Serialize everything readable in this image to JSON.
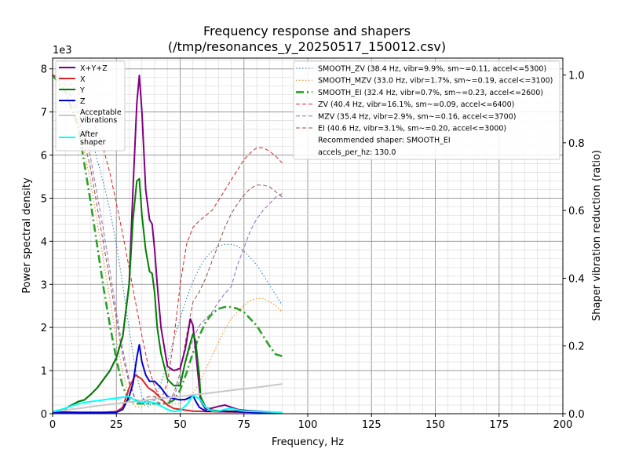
{
  "chart_data": {
    "type": "line",
    "title": "Frequency response and shapers",
    "subtitle": "(/tmp/resonances_y_20250517_150012.csv)",
    "xlabel": "Frequency, Hz",
    "ylabel": "Power spectral density",
    "ylabel_right": "Shaper vibration reduction (ratio)",
    "y_multiplier": "1e3",
    "xlim": [
      0,
      200
    ],
    "ylim": [
      0,
      8250
    ],
    "ylim_right": [
      0,
      1.05
    ],
    "x_ticks": [
      0,
      25,
      50,
      75,
      100,
      125,
      150,
      175,
      200
    ],
    "y_ticks": [
      0,
      1000,
      2000,
      3000,
      4000,
      5000,
      6000,
      7000,
      8000
    ],
    "y_tick_labels": [
      "0",
      "1",
      "2",
      "3",
      "4",
      "5",
      "6",
      "7",
      "8"
    ],
    "y_ticks_right": [
      0.0,
      0.2,
      0.4,
      0.6,
      0.8,
      1.0
    ],
    "y_tick_labels_right": [
      "0.0",
      "0.2",
      "0.4",
      "0.6",
      "0.8",
      "1.0"
    ],
    "grid": true,
    "legend_left_placement": "upper-left",
    "legend_right_placement": "upper-right",
    "psd_series": [
      {
        "name": "X+Y+Z",
        "color": "#800080",
        "style": "solid",
        "x": [
          0,
          2.5,
          5,
          7.5,
          10,
          12.5,
          15,
          17.5,
          20,
          22.5,
          25,
          27.5,
          30,
          31.5,
          33,
          34,
          35,
          36.5,
          38,
          39,
          40,
          41,
          42.5,
          45,
          47.5,
          50,
          52,
          54,
          55,
          56,
          57.5,
          58,
          60,
          62.5,
          65,
          67.5,
          70,
          72.5,
          75,
          77.5,
          80,
          82.5,
          85,
          87.5,
          90
        ],
        "y": [
          50,
          80,
          120,
          200,
          280,
          320,
          450,
          600,
          800,
          1000,
          1300,
          1800,
          3000,
          5200,
          7200,
          7850,
          7000,
          5200,
          4500,
          4400,
          3800,
          3000,
          2000,
          1100,
          1000,
          1050,
          1500,
          2200,
          2050,
          1500,
          600,
          300,
          100,
          130,
          170,
          200,
          150,
          100,
          80,
          70,
          60,
          50,
          40,
          30,
          20
        ]
      },
      {
        "name": "X",
        "color": "#d62728",
        "style": "solid",
        "x": [
          0,
          5,
          10,
          15,
          20,
          25,
          27.5,
          30,
          32.5,
          35,
          37.5,
          40,
          42.5,
          45,
          47.5,
          50,
          55,
          60,
          70,
          80,
          90
        ],
        "y": [
          40,
          40,
          30,
          30,
          30,
          50,
          150,
          600,
          900,
          800,
          600,
          500,
          350,
          200,
          120,
          100,
          60,
          50,
          40,
          30,
          20
        ]
      },
      {
        "name": "Y",
        "color": "#008000",
        "style": "solid",
        "x": [
          0,
          2.5,
          5,
          7.5,
          10,
          12.5,
          15,
          17.5,
          20,
          22.5,
          25,
          27.5,
          30,
          31.5,
          33,
          34,
          35,
          36.5,
          38,
          39,
          40,
          41,
          42.5,
          45,
          47.5,
          50,
          52,
          54,
          55,
          56,
          57.5,
          58,
          60,
          62.5,
          65,
          67.5,
          70,
          72.5,
          75,
          77.5,
          80,
          82.5,
          85,
          87.5,
          90
        ],
        "y": [
          50,
          80,
          120,
          200,
          280,
          320,
          450,
          600,
          800,
          1000,
          1300,
          1800,
          3000,
          4500,
          5400,
          5450,
          4600,
          3800,
          3300,
          3250,
          2800,
          2000,
          1400,
          800,
          650,
          650,
          1200,
          1650,
          1850,
          1700,
          900,
          400,
          150,
          80,
          70,
          60,
          60,
          60,
          60,
          60,
          50,
          40,
          30,
          20,
          20
        ]
      },
      {
        "name": "Z",
        "color": "#0000cd",
        "style": "solid",
        "x": [
          0,
          5,
          10,
          15,
          20,
          25,
          27.5,
          30,
          31.5,
          33,
          34,
          35,
          36.5,
          38,
          40,
          42.5,
          45,
          47.5,
          50,
          52,
          54,
          55,
          56,
          57.5,
          60,
          65,
          70,
          75,
          80,
          90
        ],
        "y": [
          30,
          30,
          30,
          30,
          30,
          30,
          100,
          400,
          700,
          1300,
          1600,
          1200,
          900,
          750,
          750,
          600,
          400,
          350,
          320,
          330,
          380,
          430,
          300,
          150,
          60,
          50,
          50,
          40,
          30,
          20
        ]
      },
      {
        "name": "Acceptable\nvibrations",
        "color": "#c8c8c8",
        "style": "solid",
        "x": [
          0,
          10,
          20,
          30,
          40,
          50,
          60,
          70,
          80,
          90
        ],
        "y": [
          50,
          120,
          200,
          270,
          340,
          400,
          470,
          540,
          610,
          690
        ]
      },
      {
        "name": "After\nshaper",
        "color": "#00ffff",
        "style": "solid",
        "x": [
          0,
          2.5,
          5,
          7.5,
          10,
          12.5,
          15,
          17.5,
          20,
          22.5,
          25,
          27.5,
          30,
          32.5,
          35,
          37.5,
          40,
          42.5,
          45,
          47.5,
          50,
          52.5,
          55,
          57.5,
          60,
          62.5,
          65,
          67.5,
          70,
          72.5,
          75,
          80,
          85,
          90
        ],
        "y": [
          50,
          80,
          130,
          180,
          230,
          260,
          280,
          300,
          320,
          340,
          360,
          380,
          400,
          300,
          260,
          280,
          250,
          180,
          100,
          50,
          80,
          200,
          420,
          350,
          150,
          60,
          60,
          100,
          120,
          90,
          60,
          50,
          40,
          30
        ]
      }
    ],
    "shaper_series": [
      {
        "name": "SMOOTH_ZV (38.4 Hz, vibr=9.9%, sm~=0.11, accel<=5300)",
        "color": "#1f77b4",
        "style": "dotted",
        "x": [
          0,
          5,
          10,
          15,
          20,
          22.5,
          25,
          27.5,
          30,
          32.5,
          35,
          37.5,
          40,
          42.5,
          45,
          47.5,
          50,
          52.5,
          55,
          57.5,
          60,
          62.5,
          65,
          67.5,
          70,
          72.5,
          75,
          77.5,
          80,
          82.5,
          85,
          87.5,
          90
        ],
        "y": [
          1.0,
          0.98,
          0.92,
          0.82,
          0.68,
          0.6,
          0.5,
          0.38,
          0.25,
          0.13,
          0.05,
          0.02,
          0.04,
          0.09,
          0.15,
          0.22,
          0.28,
          0.34,
          0.39,
          0.43,
          0.46,
          0.48,
          0.495,
          0.5,
          0.5,
          0.495,
          0.48,
          0.46,
          0.44,
          0.41,
          0.38,
          0.35,
          0.32
        ]
      },
      {
        "name": "SMOOTH_MZV (33.0 Hz, vibr=1.7%, sm~=0.19, accel<=3100)",
        "color": "#ff7f0e",
        "style": "dotted",
        "x": [
          0,
          5,
          10,
          15,
          20,
          25,
          27.5,
          30,
          32.5,
          35,
          37.5,
          40,
          42.5,
          45,
          47.5,
          50,
          52.5,
          55,
          57.5,
          60,
          62.5,
          65,
          67.5,
          70,
          72.5,
          75,
          77.5,
          80,
          82.5,
          85,
          87.5,
          90
        ],
        "y": [
          1.0,
          0.96,
          0.86,
          0.68,
          0.45,
          0.22,
          0.12,
          0.05,
          0.02,
          0.02,
          0.03,
          0.03,
          0.03,
          0.03,
          0.03,
          0.03,
          0.04,
          0.06,
          0.09,
          0.13,
          0.17,
          0.21,
          0.25,
          0.28,
          0.3,
          0.32,
          0.335,
          0.34,
          0.34,
          0.33,
          0.32,
          0.3
        ]
      },
      {
        "name": "SMOOTH_EI (32.4 Hz, vibr=0.7%, sm~=0.23, accel<=2600)",
        "color": "#2ca02c",
        "style": "dashdot",
        "x": [
          0,
          5,
          10,
          15,
          20,
          22.5,
          25,
          27.5,
          30,
          32.5,
          35,
          37.5,
          40,
          42.5,
          45,
          47.5,
          50,
          52.5,
          55,
          57.5,
          60,
          62.5,
          65,
          67.5,
          70,
          72.5,
          75,
          77.5,
          80,
          82.5,
          85,
          87.5,
          90
        ],
        "y": [
          1.0,
          0.95,
          0.85,
          0.62,
          0.37,
          0.26,
          0.16,
          0.08,
          0.04,
          0.03,
          0.03,
          0.03,
          0.03,
          0.03,
          0.03,
          0.04,
          0.07,
          0.12,
          0.18,
          0.23,
          0.27,
          0.295,
          0.31,
          0.315,
          0.315,
          0.31,
          0.3,
          0.28,
          0.26,
          0.23,
          0.2,
          0.175,
          0.17
        ]
      },
      {
        "name": "ZV (40.4 Hz, vibr=16.1%, sm~=0.09, accel<=6400)",
        "color": "#d62728",
        "style": "dashed",
        "x": [
          0,
          5,
          10,
          15,
          20,
          22.5,
          25,
          27.5,
          30,
          32.5,
          35,
          37.5,
          40,
          42.5,
          45,
          47.5,
          50,
          52.5,
          55,
          57.5,
          60,
          62.5,
          65,
          67.5,
          70,
          72.5,
          75,
          77.5,
          80,
          82.5,
          85,
          87.5,
          90
        ],
        "y": [
          1.0,
          0.99,
          0.95,
          0.88,
          0.78,
          0.71,
          0.62,
          0.53,
          0.43,
          0.33,
          0.23,
          0.14,
          0.08,
          0.04,
          0.09,
          0.22,
          0.38,
          0.5,
          0.55,
          0.57,
          0.585,
          0.6,
          0.63,
          0.66,
          0.69,
          0.72,
          0.75,
          0.77,
          0.785,
          0.785,
          0.775,
          0.76,
          0.74
        ]
      },
      {
        "name": "MZV (35.4 Hz, vibr=2.9%, sm~=0.16, accel<=3700)",
        "color": "#9467bd",
        "style": "dashed",
        "x": [
          0,
          5,
          10,
          15,
          20,
          25,
          27.5,
          30,
          32.5,
          35,
          37.5,
          40,
          42.5,
          45,
          47.5,
          50,
          52.5,
          55,
          57.5,
          60,
          62.5,
          65,
          67.5,
          70,
          72.5,
          75,
          77.5,
          80,
          82.5,
          85,
          87.5,
          90
        ],
        "y": [
          1.0,
          0.97,
          0.9,
          0.75,
          0.54,
          0.3,
          0.19,
          0.1,
          0.04,
          0.03,
          0.04,
          0.04,
          0.03,
          0.03,
          0.05,
          0.1,
          0.16,
          0.22,
          0.26,
          0.28,
          0.3,
          0.33,
          0.355,
          0.375,
          0.44,
          0.49,
          0.54,
          0.575,
          0.6,
          0.62,
          0.64,
          0.65
        ]
      },
      {
        "name": "EI (40.6 Hz, vibr=3.1%, sm~=0.20, accel<=3000)",
        "color": "#8c564b",
        "style": "dashed",
        "x": [
          0,
          5,
          10,
          15,
          20,
          25,
          27.5,
          30,
          32.5,
          35,
          37.5,
          40,
          42.5,
          45,
          47.5,
          50,
          52.5,
          55,
          57.5,
          60,
          62.5,
          65,
          67.5,
          70,
          72.5,
          75,
          77.5,
          80,
          82.5,
          85,
          87.5,
          90
        ],
        "y": [
          1.0,
          0.97,
          0.88,
          0.72,
          0.5,
          0.28,
          0.17,
          0.09,
          0.04,
          0.04,
          0.05,
          0.05,
          0.04,
          0.03,
          0.06,
          0.12,
          0.23,
          0.33,
          0.36,
          0.4,
          0.45,
          0.5,
          0.55,
          0.59,
          0.62,
          0.645,
          0.665,
          0.675,
          0.675,
          0.67,
          0.655,
          0.64
        ]
      }
    ],
    "legend_right_extra": [
      "Recommended shaper: SMOOTH_EI",
      "accels_per_hz: 130.0"
    ]
  }
}
